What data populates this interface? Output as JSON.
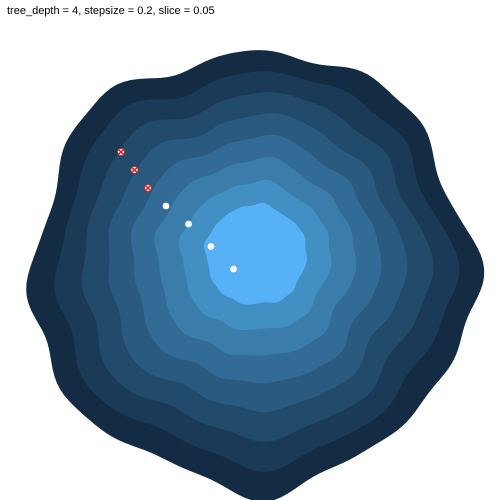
{
  "chart_data": {
    "type": "contour",
    "title": "tree_depth = 4, stepsize = 0.2, slice = 0.05",
    "xlabel": "",
    "ylabel": "",
    "grid": false,
    "levels": [
      1,
      2,
      3,
      4,
      5,
      6,
      7,
      8
    ],
    "level_colors": [
      "#132b43",
      "#1b3a57",
      "#224a6b",
      "#2a5a80",
      "#326b95",
      "#3a7dab",
      "#4290c3",
      "#56b1f7"
    ],
    "contour_center": [
      0.25,
      0.25
    ],
    "points_rejected": [
      {
        "x": -1.0,
        "y": 1.0
      },
      {
        "x": -0.85,
        "y": 0.8
      },
      {
        "x": -0.7,
        "y": 0.6
      }
    ],
    "points_accepted": [
      {
        "x": -0.5,
        "y": 0.4
      },
      {
        "x": -0.25,
        "y": 0.2
      },
      {
        "x": 0.0,
        "y": -0.05
      },
      {
        "x": 0.25,
        "y": -0.3
      }
    ],
    "colors": {
      "rejected_fill": "#ffffff",
      "rejected_mark": "#cc2222",
      "accepted_fill": "#ffffff"
    }
  }
}
